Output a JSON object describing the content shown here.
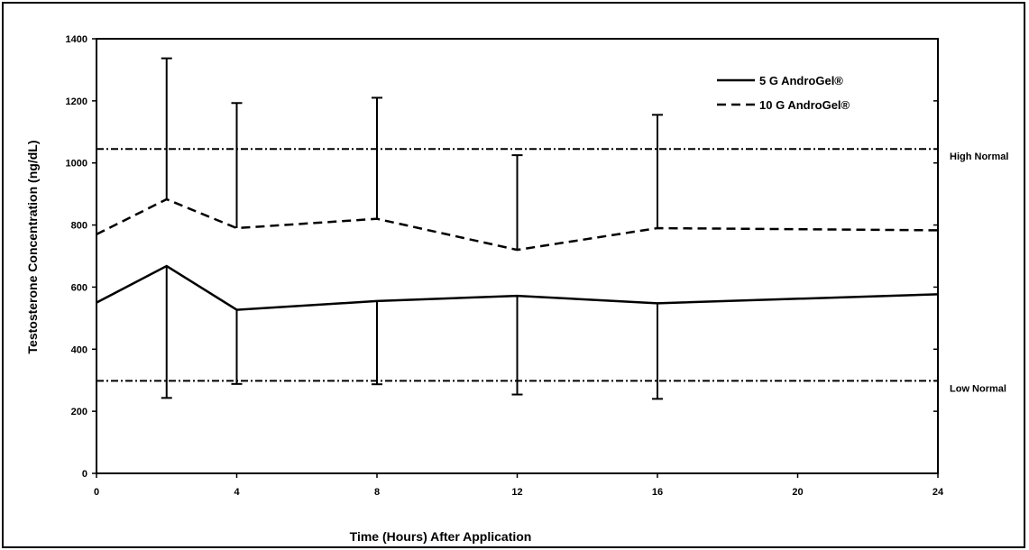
{
  "chart_data": {
    "type": "line",
    "title": "",
    "xlabel": "Time (Hours) After Application",
    "ylabel": "Testosterone Concentration (ng/dL)",
    "xlim": [
      0,
      24
    ],
    "ylim": [
      0,
      1400
    ],
    "x_ticks": [
      0,
      4,
      8,
      12,
      16,
      20,
      24
    ],
    "y_ticks": [
      0,
      200,
      400,
      600,
      800,
      1000,
      1200,
      1400
    ],
    "grid": false,
    "legend_position": "top-right",
    "series": [
      {
        "name": "5 G AndroGel®",
        "style": "solid",
        "color": "#000000",
        "x": [
          0,
          2,
          4,
          8,
          12,
          16,
          24
        ],
        "y": [
          550,
          668,
          527,
          555,
          572,
          548,
          577
        ],
        "error_lower": [
          null,
          243,
          288,
          287,
          254,
          240,
          null
        ]
      },
      {
        "name": "10 G AndroGel®",
        "style": "dashed",
        "color": "#000000",
        "x": [
          0,
          2,
          4,
          8,
          12,
          16,
          24
        ],
        "y": [
          770,
          883,
          790,
          820,
          720,
          790,
          783
        ],
        "error_upper": [
          null,
          1337,
          1193,
          1210,
          1025,
          1155,
          null
        ]
      }
    ],
    "reference_lines": [
      {
        "label": "High Normal",
        "y": 1045,
        "style": "dash-dot"
      },
      {
        "label": "Low Normal",
        "y": 298,
        "style": "dash-dot"
      }
    ]
  }
}
